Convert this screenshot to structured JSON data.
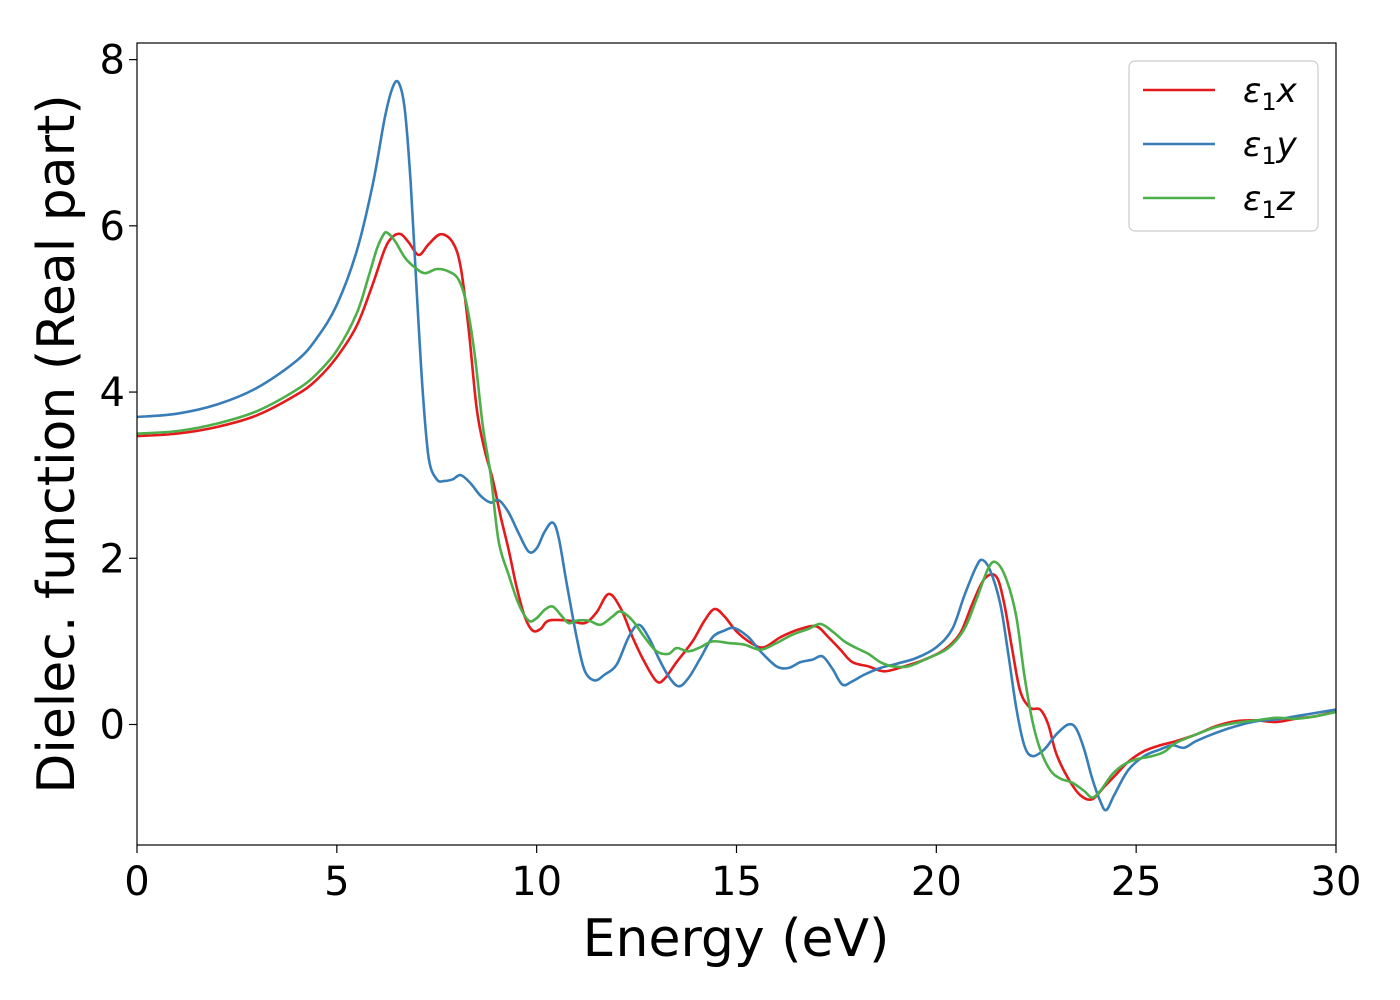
{
  "chart_data": {
    "type": "line",
    "xlabel": "Energy (eV)",
    "ylabel": "Dielec. function (Real part)",
    "xlim": [
      0,
      30
    ],
    "ylim": [
      -1.45,
      8.2
    ],
    "xticks": [
      0,
      5,
      10,
      15,
      20,
      25,
      30
    ],
    "yticks": [
      0,
      2,
      4,
      6,
      8
    ],
    "xtick_labels": [
      "0",
      "5",
      "10",
      "15",
      "20",
      "25",
      "30"
    ],
    "ytick_labels": [
      "0",
      "2",
      "4",
      "6",
      "8"
    ],
    "grid": false,
    "legend_position": "top-right",
    "legend_symbol": "ε",
    "legend_subscript": "1",
    "series": [
      {
        "name": "ε1x",
        "legend_suffix": "x",
        "color": "#e41a1c",
        "points": [
          [
            0,
            3.47
          ],
          [
            1,
            3.5
          ],
          [
            2,
            3.58
          ],
          [
            3,
            3.72
          ],
          [
            4,
            3.97
          ],
          [
            4.5,
            4.15
          ],
          [
            5,
            4.42
          ],
          [
            5.5,
            4.8
          ],
          [
            5.9,
            5.3
          ],
          [
            6.2,
            5.72
          ],
          [
            6.4,
            5.87
          ],
          [
            6.6,
            5.9
          ],
          [
            6.8,
            5.8
          ],
          [
            7.05,
            5.65
          ],
          [
            7.3,
            5.78
          ],
          [
            7.6,
            5.9
          ],
          [
            7.9,
            5.8
          ],
          [
            8.1,
            5.5
          ],
          [
            8.3,
            4.75
          ],
          [
            8.5,
            3.8
          ],
          [
            8.7,
            3.3
          ],
          [
            8.9,
            2.95
          ],
          [
            9.1,
            2.5
          ],
          [
            9.3,
            2.1
          ],
          [
            9.5,
            1.65
          ],
          [
            9.7,
            1.3
          ],
          [
            9.9,
            1.13
          ],
          [
            10.1,
            1.15
          ],
          [
            10.3,
            1.25
          ],
          [
            10.8,
            1.25
          ],
          [
            11.2,
            1.22
          ],
          [
            11.5,
            1.35
          ],
          [
            11.8,
            1.57
          ],
          [
            12.1,
            1.4
          ],
          [
            12.4,
            1.05
          ],
          [
            12.7,
            0.75
          ],
          [
            13.0,
            0.52
          ],
          [
            13.2,
            0.55
          ],
          [
            13.5,
            0.75
          ],
          [
            13.9,
            1.0
          ],
          [
            14.2,
            1.25
          ],
          [
            14.45,
            1.39
          ],
          [
            14.7,
            1.3
          ],
          [
            15.0,
            1.12
          ],
          [
            15.4,
            0.97
          ],
          [
            15.7,
            0.93
          ],
          [
            16.1,
            1.05
          ],
          [
            16.6,
            1.15
          ],
          [
            17.0,
            1.18
          ],
          [
            17.3,
            1.05
          ],
          [
            17.6,
            0.9
          ],
          [
            17.9,
            0.75
          ],
          [
            18.3,
            0.7
          ],
          [
            18.7,
            0.64
          ],
          [
            19.2,
            0.7
          ],
          [
            19.7,
            0.78
          ],
          [
            20.2,
            0.9
          ],
          [
            20.6,
            1.1
          ],
          [
            20.9,
            1.45
          ],
          [
            21.2,
            1.75
          ],
          [
            21.5,
            1.78
          ],
          [
            21.7,
            1.45
          ],
          [
            21.9,
            0.9
          ],
          [
            22.1,
            0.4
          ],
          [
            22.35,
            0.2
          ],
          [
            22.6,
            0.18
          ],
          [
            22.8,
            0.0
          ],
          [
            23.0,
            -0.35
          ],
          [
            23.3,
            -0.65
          ],
          [
            23.6,
            -0.85
          ],
          [
            23.9,
            -0.9
          ],
          [
            24.2,
            -0.75
          ],
          [
            24.5,
            -0.6
          ],
          [
            24.8,
            -0.45
          ],
          [
            25.2,
            -0.32
          ],
          [
            25.6,
            -0.25
          ],
          [
            26.0,
            -0.2
          ],
          [
            26.5,
            -0.12
          ],
          [
            27.0,
            -0.02
          ],
          [
            27.5,
            0.04
          ],
          [
            28.0,
            0.05
          ],
          [
            28.5,
            0.03
          ],
          [
            29.0,
            0.07
          ],
          [
            29.5,
            0.1
          ],
          [
            30,
            0.16
          ]
        ]
      },
      {
        "name": "ε1y",
        "legend_suffix": "y",
        "color": "#377eb8",
        "points": [
          [
            0,
            3.7
          ],
          [
            1,
            3.74
          ],
          [
            2,
            3.85
          ],
          [
            3,
            4.05
          ],
          [
            4,
            4.38
          ],
          [
            4.5,
            4.65
          ],
          [
            5,
            5.05
          ],
          [
            5.5,
            5.7
          ],
          [
            5.9,
            6.5
          ],
          [
            6.2,
            7.3
          ],
          [
            6.4,
            7.67
          ],
          [
            6.55,
            7.72
          ],
          [
            6.7,
            7.4
          ],
          [
            6.85,
            6.5
          ],
          [
            7.0,
            5.2
          ],
          [
            7.15,
            4.0
          ],
          [
            7.3,
            3.2
          ],
          [
            7.5,
            2.95
          ],
          [
            7.7,
            2.93
          ],
          [
            7.9,
            2.95
          ],
          [
            8.1,
            3.0
          ],
          [
            8.35,
            2.9
          ],
          [
            8.6,
            2.75
          ],
          [
            8.85,
            2.67
          ],
          [
            9.05,
            2.7
          ],
          [
            9.3,
            2.55
          ],
          [
            9.55,
            2.3
          ],
          [
            9.8,
            2.08
          ],
          [
            10.0,
            2.12
          ],
          [
            10.2,
            2.32
          ],
          [
            10.4,
            2.43
          ],
          [
            10.55,
            2.25
          ],
          [
            10.75,
            1.7
          ],
          [
            11.0,
            1.05
          ],
          [
            11.2,
            0.65
          ],
          [
            11.45,
            0.53
          ],
          [
            11.7,
            0.6
          ],
          [
            12.0,
            0.72
          ],
          [
            12.3,
            1.05
          ],
          [
            12.55,
            1.2
          ],
          [
            12.8,
            1.05
          ],
          [
            13.05,
            0.8
          ],
          [
            13.3,
            0.58
          ],
          [
            13.55,
            0.46
          ],
          [
            13.8,
            0.56
          ],
          [
            14.1,
            0.8
          ],
          [
            14.4,
            1.05
          ],
          [
            14.7,
            1.13
          ],
          [
            14.95,
            1.16
          ],
          [
            15.3,
            1.05
          ],
          [
            15.6,
            0.88
          ],
          [
            16.0,
            0.7
          ],
          [
            16.3,
            0.68
          ],
          [
            16.6,
            0.75
          ],
          [
            16.9,
            0.78
          ],
          [
            17.15,
            0.82
          ],
          [
            17.4,
            0.67
          ],
          [
            17.65,
            0.48
          ],
          [
            17.9,
            0.52
          ],
          [
            18.2,
            0.6
          ],
          [
            18.6,
            0.68
          ],
          [
            19.0,
            0.73
          ],
          [
            19.5,
            0.8
          ],
          [
            20.0,
            0.93
          ],
          [
            20.4,
            1.15
          ],
          [
            20.7,
            1.55
          ],
          [
            21.0,
            1.9
          ],
          [
            21.15,
            1.98
          ],
          [
            21.35,
            1.85
          ],
          [
            21.6,
            1.45
          ],
          [
            21.8,
            0.85
          ],
          [
            22.0,
            0.2
          ],
          [
            22.2,
            -0.25
          ],
          [
            22.4,
            -0.38
          ],
          [
            22.7,
            -0.3
          ],
          [
            23.0,
            -0.12
          ],
          [
            23.3,
            0.0
          ],
          [
            23.5,
            -0.05
          ],
          [
            23.7,
            -0.3
          ],
          [
            23.9,
            -0.65
          ],
          [
            24.1,
            -0.92
          ],
          [
            24.25,
            -1.03
          ],
          [
            24.45,
            -0.85
          ],
          [
            24.8,
            -0.55
          ],
          [
            25.2,
            -0.38
          ],
          [
            25.6,
            -0.3
          ],
          [
            25.9,
            -0.25
          ],
          [
            26.2,
            -0.28
          ],
          [
            26.5,
            -0.2
          ],
          [
            27.0,
            -0.1
          ],
          [
            27.5,
            -0.02
          ],
          [
            28.0,
            0.04
          ],
          [
            28.5,
            0.06
          ],
          [
            29.0,
            0.1
          ],
          [
            29.5,
            0.14
          ],
          [
            30,
            0.18
          ]
        ]
      },
      {
        "name": "ε1z",
        "legend_suffix": "z",
        "color": "#4daf4a",
        "points": [
          [
            0,
            3.5
          ],
          [
            1,
            3.53
          ],
          [
            2,
            3.62
          ],
          [
            3,
            3.77
          ],
          [
            4,
            4.03
          ],
          [
            4.5,
            4.22
          ],
          [
            5,
            4.5
          ],
          [
            5.5,
            4.95
          ],
          [
            5.8,
            5.4
          ],
          [
            6.0,
            5.72
          ],
          [
            6.15,
            5.88
          ],
          [
            6.25,
            5.92
          ],
          [
            6.45,
            5.82
          ],
          [
            6.7,
            5.62
          ],
          [
            6.95,
            5.5
          ],
          [
            7.2,
            5.43
          ],
          [
            7.5,
            5.48
          ],
          [
            7.8,
            5.45
          ],
          [
            8.05,
            5.35
          ],
          [
            8.25,
            5.05
          ],
          [
            8.45,
            4.45
          ],
          [
            8.65,
            3.6
          ],
          [
            8.85,
            3.0
          ],
          [
            9.05,
            2.2
          ],
          [
            9.3,
            1.8
          ],
          [
            9.55,
            1.45
          ],
          [
            9.8,
            1.25
          ],
          [
            10.0,
            1.28
          ],
          [
            10.2,
            1.38
          ],
          [
            10.4,
            1.42
          ],
          [
            10.6,
            1.32
          ],
          [
            10.8,
            1.22
          ],
          [
            11.0,
            1.25
          ],
          [
            11.3,
            1.25
          ],
          [
            11.6,
            1.2
          ],
          [
            11.9,
            1.3
          ],
          [
            12.1,
            1.36
          ],
          [
            12.4,
            1.25
          ],
          [
            12.7,
            1.05
          ],
          [
            13.0,
            0.88
          ],
          [
            13.3,
            0.85
          ],
          [
            13.5,
            0.92
          ],
          [
            13.8,
            0.88
          ],
          [
            14.1,
            0.93
          ],
          [
            14.4,
            1.0
          ],
          [
            14.8,
            0.98
          ],
          [
            15.2,
            0.96
          ],
          [
            15.6,
            0.9
          ],
          [
            16.0,
            0.98
          ],
          [
            16.4,
            1.08
          ],
          [
            16.8,
            1.15
          ],
          [
            17.1,
            1.21
          ],
          [
            17.4,
            1.12
          ],
          [
            17.7,
            1.0
          ],
          [
            18.0,
            0.92
          ],
          [
            18.3,
            0.85
          ],
          [
            18.6,
            0.75
          ],
          [
            18.9,
            0.7
          ],
          [
            19.3,
            0.7
          ],
          [
            19.8,
            0.8
          ],
          [
            20.3,
            0.92
          ],
          [
            20.7,
            1.15
          ],
          [
            21.0,
            1.5
          ],
          [
            21.3,
            1.88
          ],
          [
            21.5,
            1.95
          ],
          [
            21.75,
            1.75
          ],
          [
            22.0,
            1.3
          ],
          [
            22.2,
            0.6
          ],
          [
            22.4,
            0.05
          ],
          [
            22.6,
            -0.3
          ],
          [
            22.85,
            -0.55
          ],
          [
            23.1,
            -0.65
          ],
          [
            23.4,
            -0.7
          ],
          [
            23.7,
            -0.8
          ],
          [
            23.9,
            -0.88
          ],
          [
            24.1,
            -0.8
          ],
          [
            24.4,
            -0.6
          ],
          [
            24.7,
            -0.48
          ],
          [
            25.0,
            -0.42
          ],
          [
            25.4,
            -0.38
          ],
          [
            25.7,
            -0.33
          ],
          [
            26.0,
            -0.22
          ],
          [
            26.5,
            -0.12
          ],
          [
            27.0,
            -0.03
          ],
          [
            27.5,
            0.02
          ],
          [
            28.0,
            0.05
          ],
          [
            28.5,
            0.08
          ],
          [
            29.0,
            0.07
          ],
          [
            29.5,
            0.1
          ],
          [
            30,
            0.15
          ]
        ]
      }
    ]
  }
}
